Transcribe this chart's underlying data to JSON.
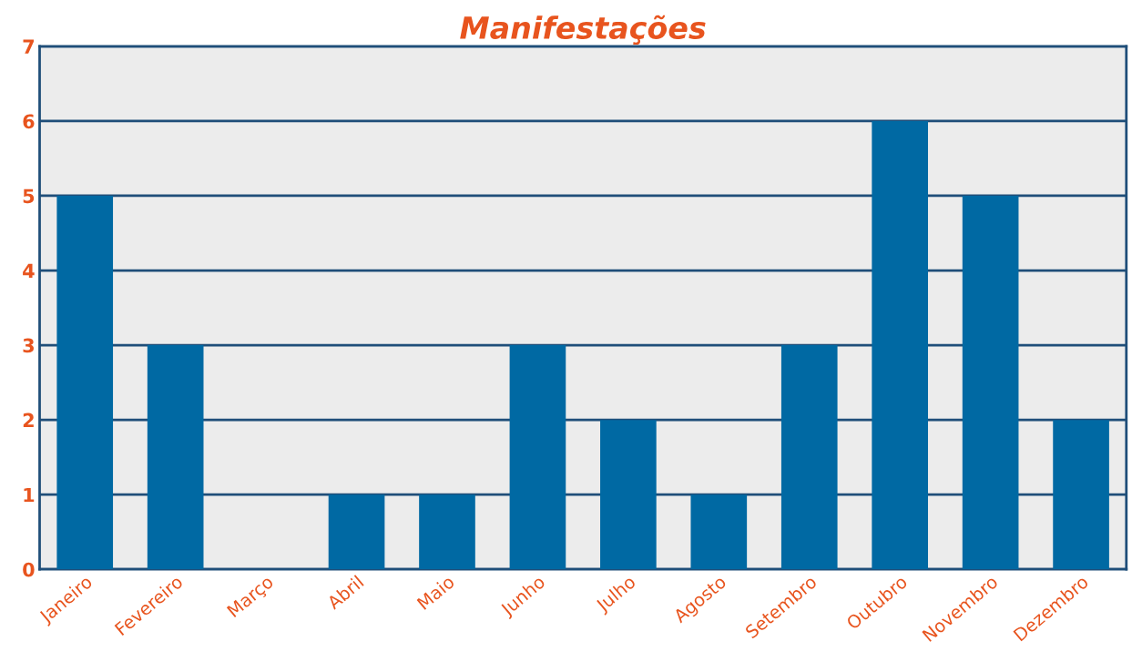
{
  "chart_data": {
    "type": "bar",
    "title": "Manifestações",
    "categories": [
      "Janeiro",
      "Fevereiro",
      "Março",
      "Abril",
      "Maio",
      "Junho",
      "Julho",
      "Agosto",
      "Setembro",
      "Outubro",
      "Novembro",
      "Dezembro"
    ],
    "values": [
      5,
      3,
      0,
      1,
      1,
      3,
      2,
      1,
      3,
      6,
      5,
      2
    ],
    "color": "#0069a3",
    "ylim": [
      0,
      7
    ],
    "yticks": [
      0,
      1,
      2,
      3,
      4,
      5,
      6,
      7
    ],
    "grid": "y"
  }
}
